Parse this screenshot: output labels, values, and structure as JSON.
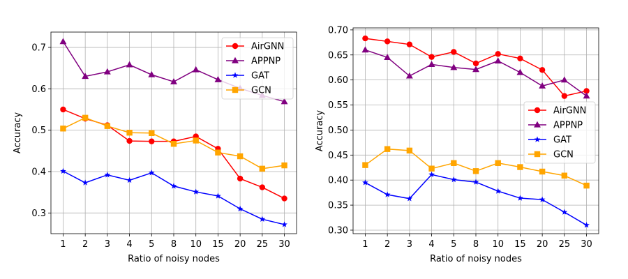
{
  "chart_data": [
    {
      "type": "line",
      "categories": [
        "1",
        "2",
        "3",
        "4",
        "5",
        "8",
        "10",
        "15",
        "20",
        "25",
        "30"
      ],
      "xlabel": "Ratio of noisy nodes",
      "ylabel": "Accuracy",
      "ylim": [
        0.25,
        0.737
      ],
      "yticks": [
        0.3,
        0.4,
        0.5,
        0.6,
        0.7
      ],
      "ytick_labels": [
        "0.3",
        "0.4",
        "0.5",
        "0.6",
        "0.7"
      ],
      "grid": true,
      "legend_position": "top-right",
      "series": [
        {
          "name": "AirGNN",
          "color": "#ff0000",
          "marker": "circle",
          "values": [
            0.55,
            0.528,
            0.512,
            0.474,
            0.473,
            0.473,
            0.485,
            0.455,
            0.383,
            0.362,
            0.335
          ]
        },
        {
          "name": "APPNP",
          "color": "#800080",
          "marker": "triangle",
          "values": [
            0.714,
            0.63,
            0.641,
            0.658,
            0.634,
            0.617,
            0.646,
            0.622,
            0.601,
            0.584,
            0.569
          ]
        },
        {
          "name": "GAT",
          "color": "#0000ff",
          "marker": "star",
          "values": [
            0.401,
            0.373,
            0.392,
            0.379,
            0.397,
            0.365,
            0.351,
            0.341,
            0.31,
            0.285,
            0.272
          ]
        },
        {
          "name": "GCN",
          "color": "#ffa500",
          "marker": "square",
          "values": [
            0.504,
            0.53,
            0.51,
            0.494,
            0.493,
            0.467,
            0.475,
            0.446,
            0.437,
            0.407,
            0.415
          ]
        }
      ]
    },
    {
      "type": "line",
      "categories": [
        "1",
        "2",
        "3",
        "4",
        "5",
        "8",
        "10",
        "15",
        "20",
        "25",
        "30"
      ],
      "xlabel": "Ratio of noisy nodes",
      "ylabel": "Accuracy",
      "ylim": [
        0.293,
        0.704
      ],
      "yticks": [
        0.3,
        0.35,
        0.4,
        0.45,
        0.5,
        0.55,
        0.6,
        0.65,
        0.7
      ],
      "ytick_labels": [
        "0.30",
        "0.35",
        "0.40",
        "0.45",
        "0.50",
        "0.55",
        "0.60",
        "0.65",
        "0.70"
      ],
      "grid": true,
      "legend_position": "center-right",
      "series": [
        {
          "name": "AirGNN",
          "color": "#ff0000",
          "marker": "circle",
          "values": [
            0.683,
            0.677,
            0.671,
            0.646,
            0.656,
            0.633,
            0.652,
            0.643,
            0.62,
            0.568,
            0.578
          ]
        },
        {
          "name": "APPNP",
          "color": "#800080",
          "marker": "triangle",
          "values": [
            0.66,
            0.645,
            0.608,
            0.631,
            0.625,
            0.621,
            0.638,
            0.615,
            0.588,
            0.6,
            0.568
          ]
        },
        {
          "name": "GAT",
          "color": "#0000ff",
          "marker": "star",
          "values": [
            0.395,
            0.371,
            0.363,
            0.411,
            0.401,
            0.396,
            0.378,
            0.364,
            0.361,
            0.336,
            0.31
          ]
        },
        {
          "name": "GCN",
          "color": "#ffa500",
          "marker": "square",
          "values": [
            0.43,
            0.462,
            0.459,
            0.423,
            0.434,
            0.418,
            0.434,
            0.426,
            0.417,
            0.409,
            0.389
          ]
        }
      ]
    }
  ]
}
